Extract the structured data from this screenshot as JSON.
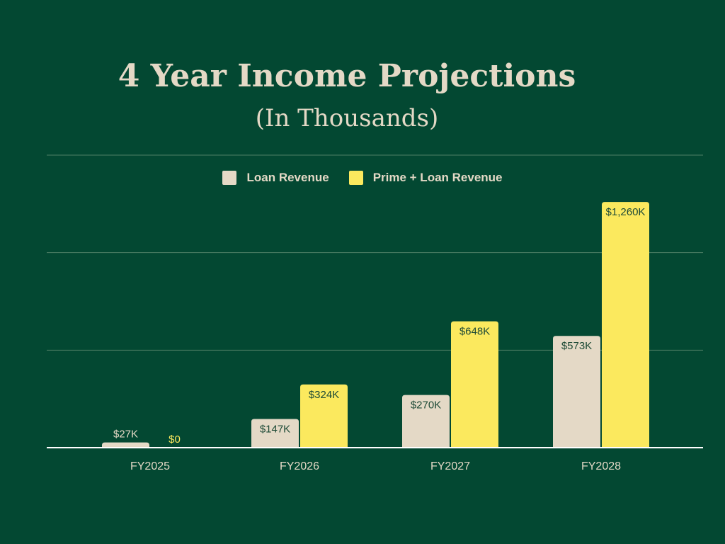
{
  "chart_data": {
    "type": "bar",
    "title": "4 Year Income Projections",
    "subtitle": "(In Thousands)",
    "categories": [
      "FY2025",
      "FY2026",
      "FY2027",
      "FY2028"
    ],
    "series": [
      {
        "name": "Loan Revenue",
        "color": "#e4d9c6",
        "values": [
          27,
          147,
          270,
          573
        ],
        "labels": [
          "$27K",
          "$147K",
          "$270K",
          "$573K"
        ]
      },
      {
        "name": "Prime + Loan Revenue",
        "color": "#fbe95e",
        "values": [
          0,
          324,
          648,
          1260
        ],
        "labels": [
          "$0",
          "$324K",
          "$648K",
          "$1,260K"
        ]
      }
    ],
    "ylim": [
      0,
      1500
    ],
    "gridlines": [
      500,
      1000,
      1500
    ],
    "grid": true,
    "legend": "top-center",
    "xlabel": "",
    "ylabel": ""
  }
}
